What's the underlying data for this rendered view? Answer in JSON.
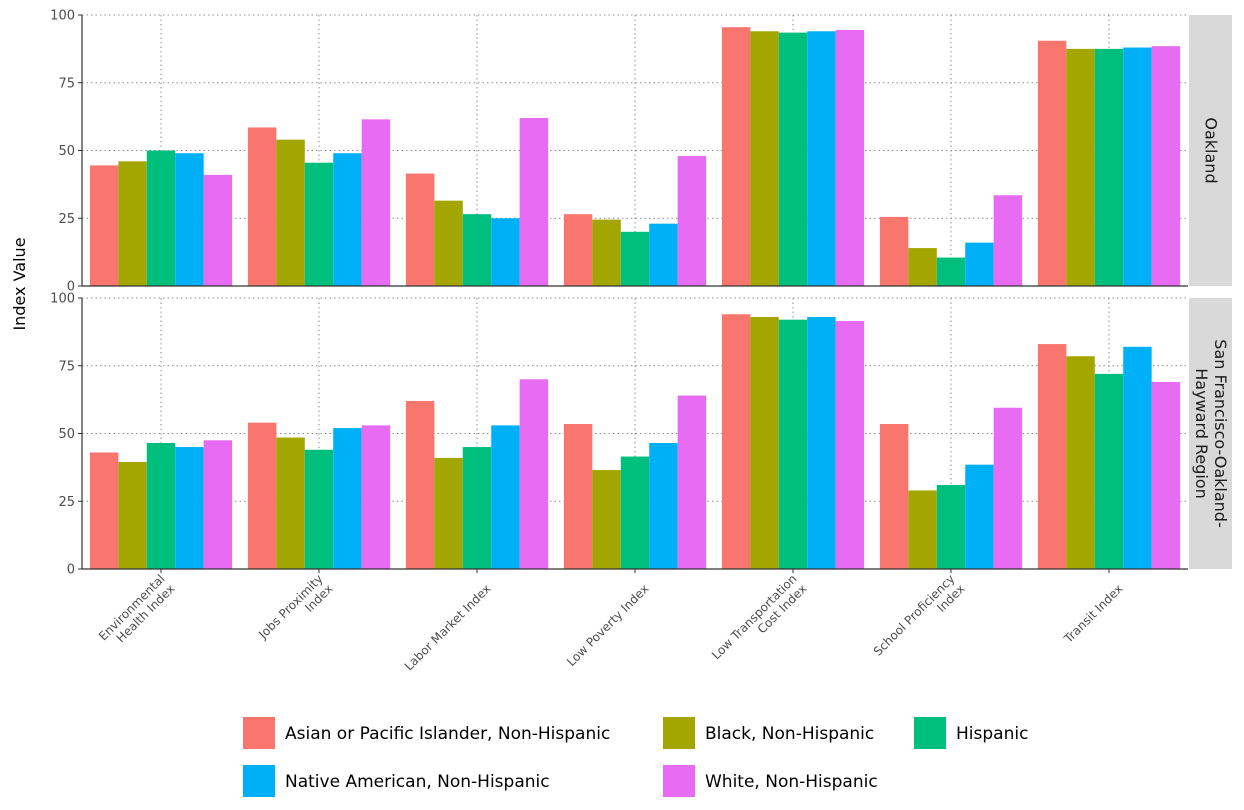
{
  "chart_data": {
    "type": "bar",
    "ylabel": "Index Value",
    "ylim": [
      0,
      100
    ],
    "yticks": [
      0,
      25,
      50,
      75,
      100
    ],
    "grid": true,
    "legend_position": "bottom",
    "categories": [
      [
        "Environmental",
        "Health Index"
      ],
      [
        "Jobs Proximity",
        "Index"
      ],
      [
        "Labor Market Index"
      ],
      [
        "Low Poverty Index"
      ],
      [
        "Low Transportation",
        "Cost Index"
      ],
      [
        "School Proficiency",
        "Index"
      ],
      [
        "Transit Index"
      ]
    ],
    "series": [
      {
        "name": "Asian or Pacific Islander, Non-Hispanic",
        "color": "#F8766D"
      },
      {
        "name": "Black, Non-Hispanic",
        "color": "#A3A500"
      },
      {
        "name": "Hispanic",
        "color": "#00BF7D"
      },
      {
        "name": "Native American, Non-Hispanic",
        "color": "#00B0F6"
      },
      {
        "name": "White, Non-Hispanic",
        "color": "#E76BF3"
      }
    ],
    "facets": [
      {
        "label": [
          "Oakland"
        ],
        "values": [
          [
            44.5,
            46,
            50,
            49,
            41
          ],
          [
            58.5,
            54,
            45.5,
            49,
            61.5
          ],
          [
            41.5,
            31.5,
            26.5,
            25,
            62
          ],
          [
            26.5,
            24.5,
            20,
            23,
            48
          ],
          [
            95.5,
            94,
            93.5,
            94,
            94.5
          ],
          [
            25.5,
            14,
            10.5,
            16,
            33.5
          ],
          [
            90.5,
            87.5,
            87.5,
            88,
            88.5
          ]
        ]
      },
      {
        "label": [
          "San Francisco-Oakland-",
          "Hayward Region"
        ],
        "values": [
          [
            43,
            39.5,
            46.5,
            45,
            47.5
          ],
          [
            54,
            48.5,
            44,
            52,
            53
          ],
          [
            62,
            41,
            45,
            53,
            70
          ],
          [
            53.5,
            36.5,
            41.5,
            46.5,
            64
          ],
          [
            94,
            93,
            92,
            93,
            91.5
          ],
          [
            53.5,
            29,
            31,
            38.5,
            59.5
          ],
          [
            83,
            78.5,
            72,
            82,
            69
          ]
        ]
      }
    ]
  }
}
